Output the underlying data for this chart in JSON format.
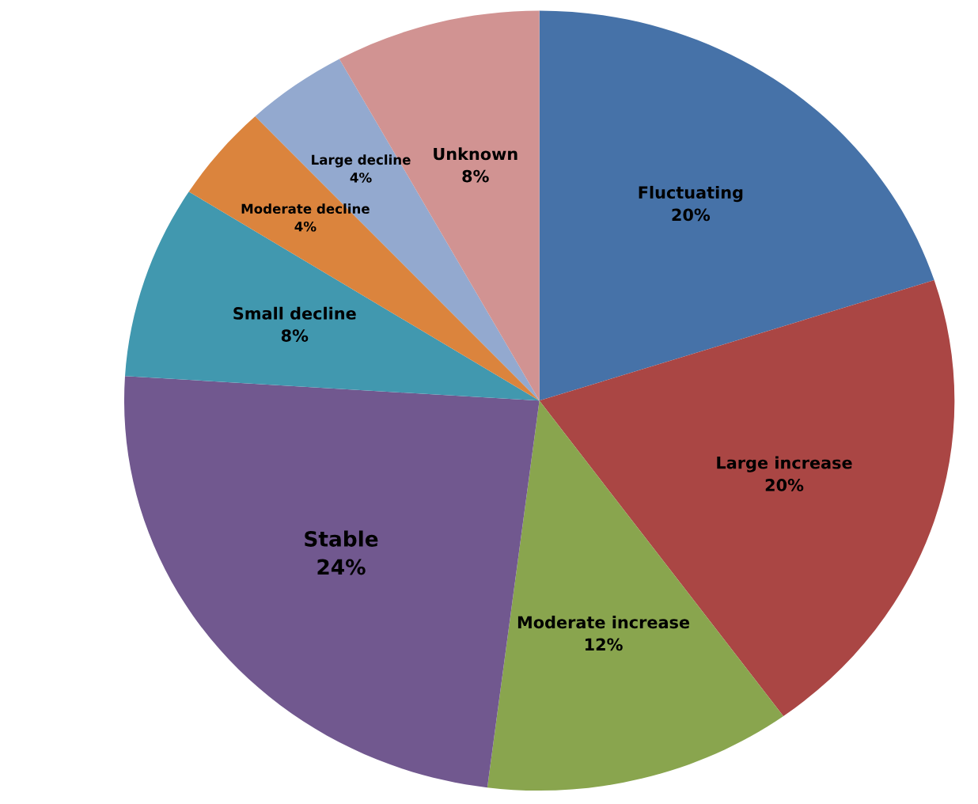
{
  "chart_data": {
    "type": "pie",
    "categories": [
      "Fluctuating",
      "Large increase",
      "Moderate increase",
      "Stable",
      "Small decline",
      "Moderate decline",
      "Large decline",
      "Unknown"
    ],
    "values": [
      20,
      20,
      12,
      24,
      8,
      4,
      4,
      8
    ],
    "value_labels": [
      "20%",
      "20%",
      "12%",
      "24%",
      "8%",
      "4%",
      "4%",
      "8%"
    ],
    "colors": [
      "#4672a8",
      "#aa4644",
      "#89a54e",
      "#71588f",
      "#4198af",
      "#db843d",
      "#93a9cf",
      "#d19392"
    ],
    "legend": false
  }
}
